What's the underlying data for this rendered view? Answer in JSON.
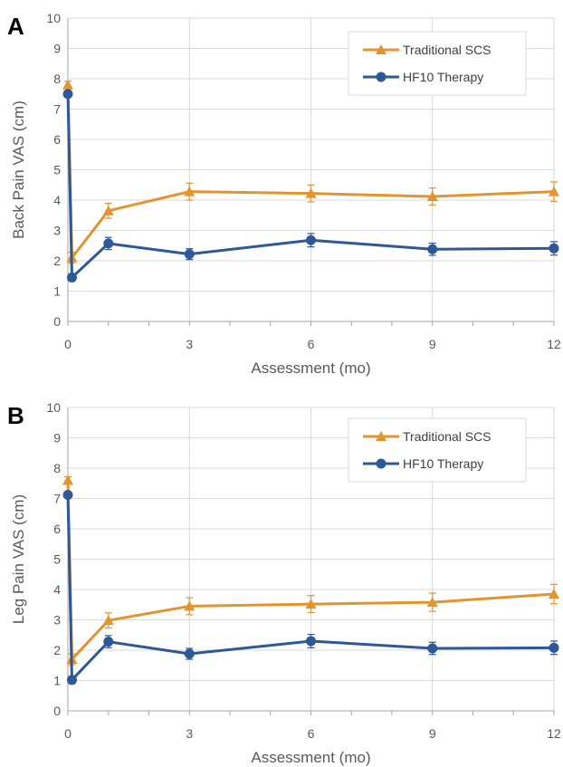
{
  "colors": {
    "traditional": "#e3942e",
    "hf10": "#2f5896",
    "grid": "#d9d9d9",
    "axis": "#a6a6a6",
    "text": "#595959"
  },
  "chart_data": [
    {
      "type": "line",
      "panel_label": "A",
      "xlabel": "Assessment (mo)",
      "ylabel": "Back Pain VAS (cm)",
      "xlim": [
        0,
        12
      ],
      "ylim": [
        0,
        10
      ],
      "x_ticks": [
        "0",
        "3",
        "6",
        "9",
        "12"
      ],
      "y_ticks": [
        "0",
        "1",
        "2",
        "3",
        "4",
        "5",
        "6",
        "7",
        "8",
        "9",
        "10"
      ],
      "grid": "vertical",
      "legend_position": "top-right",
      "series": [
        {
          "name": "Traditional SCS",
          "marker": "triangle",
          "color": "#e3942e",
          "x": [
            0,
            0.1,
            1,
            3,
            6,
            9,
            12
          ],
          "y": [
            7.8,
            2.1,
            3.65,
            4.28,
            4.22,
            4.12,
            4.28
          ],
          "error": [
            0.12,
            0.18,
            0.25,
            0.28,
            0.28,
            0.28,
            0.32
          ]
        },
        {
          "name": "HF10 Therapy",
          "marker": "circle",
          "color": "#2f5896",
          "x": [
            0,
            0.1,
            1,
            3,
            6,
            9,
            12
          ],
          "y": [
            7.5,
            1.45,
            2.57,
            2.22,
            2.68,
            2.38,
            2.41
          ],
          "error": [
            0.1,
            0.12,
            0.2,
            0.18,
            0.22,
            0.2,
            0.22
          ]
        }
      ]
    },
    {
      "type": "line",
      "panel_label": "B",
      "xlabel": "Assessment (mo)",
      "ylabel": "Leg Pain VAS (cm)",
      "xlim": [
        0,
        12
      ],
      "ylim": [
        0,
        10
      ],
      "x_ticks": [
        "0",
        "3",
        "6",
        "9",
        "12"
      ],
      "y_ticks": [
        "0",
        "1",
        "2",
        "3",
        "4",
        "5",
        "6",
        "7",
        "8",
        "9",
        "10"
      ],
      "grid": "vertical",
      "legend_position": "top-right",
      "series": [
        {
          "name": "Traditional SCS",
          "marker": "triangle",
          "color": "#e3942e",
          "x": [
            0,
            0.1,
            1,
            3,
            6,
            9,
            12
          ],
          "y": [
            7.6,
            1.7,
            2.98,
            3.45,
            3.52,
            3.58,
            3.85
          ],
          "error": [
            0.12,
            0.18,
            0.25,
            0.28,
            0.28,
            0.3,
            0.32
          ]
        },
        {
          "name": "HF10 Therapy",
          "marker": "circle",
          "color": "#2f5896",
          "x": [
            0,
            0.1,
            1,
            3,
            6,
            9,
            12
          ],
          "y": [
            7.12,
            1.02,
            2.28,
            1.88,
            2.3,
            2.06,
            2.08
          ],
          "error": [
            0.1,
            0.12,
            0.2,
            0.18,
            0.22,
            0.2,
            0.22
          ]
        }
      ]
    }
  ]
}
